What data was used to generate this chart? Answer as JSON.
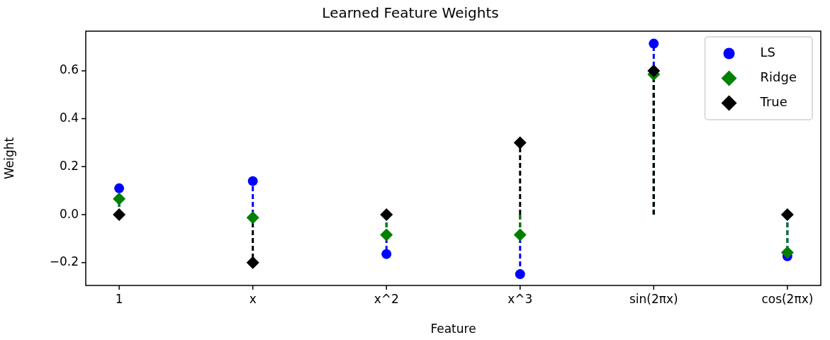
{
  "chart_data": {
    "type": "lollipop",
    "title": "Learned Feature Weights",
    "xlabel": "Feature",
    "ylabel": "Weight",
    "categories": [
      "1",
      "x",
      "x^2",
      "x^3",
      "sin(2πx)",
      "cos(2πx)"
    ],
    "series": [
      {
        "name": "LS",
        "color": "#0000ff",
        "marker": "circle",
        "values": [
          0.11,
          0.14,
          -0.164,
          -0.248,
          0.713,
          -0.173
        ]
      },
      {
        "name": "Ridge",
        "color": "#008000",
        "marker": "diamond",
        "values": [
          0.066,
          -0.012,
          -0.084,
          -0.084,
          0.585,
          -0.158
        ]
      },
      {
        "name": "True",
        "color": "#000000",
        "marker": "diamond",
        "values": [
          0,
          -0.2,
          0,
          0.3,
          0.6,
          0
        ]
      }
    ],
    "line_style": "dashed",
    "legend": "top right",
    "grid": false,
    "ylim": [
      -0.295,
      0.765
    ],
    "yticks": [
      {
        "value": -0.2,
        "label": "−0.2"
      },
      {
        "value": 0,
        "label": "0.0"
      },
      {
        "value": 0.2,
        "label": "0.2"
      },
      {
        "value": 0.4,
        "label": "0.4"
      },
      {
        "value": 0.6,
        "label": "0.6"
      }
    ]
  }
}
